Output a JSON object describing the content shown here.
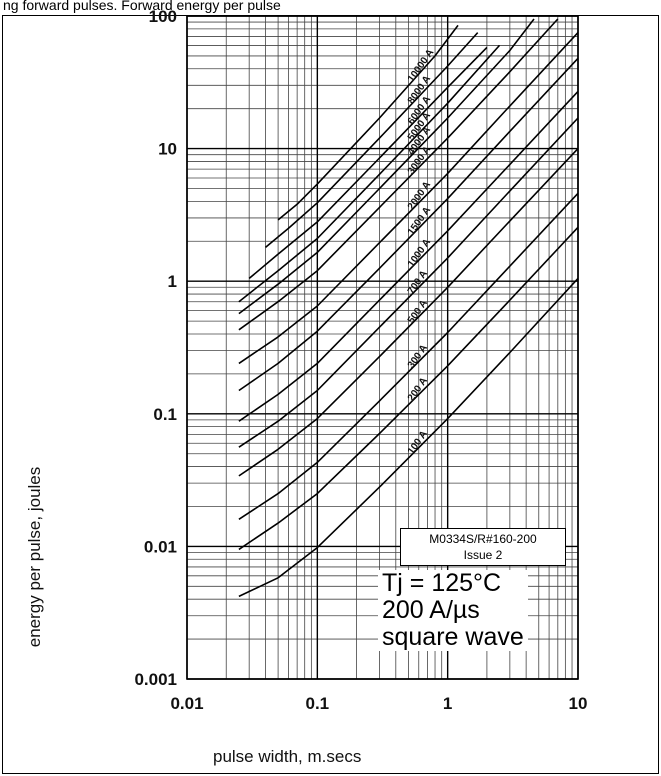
{
  "page": {
    "top_caption": "ng forward pulses. Forward energy per pulse"
  },
  "reference": {
    "code": "M0334S/R#160-200",
    "issue": "Issue 2"
  },
  "conditions": {
    "line1": "Tj = 125°C",
    "line2": "200 A/µs",
    "line3": "square wave"
  },
  "chart_data": {
    "type": "line",
    "title": "",
    "xlabel": "pulse width, m.secs",
    "ylabel": "energy per pulse, joules",
    "xscale": "log",
    "yscale": "log",
    "xlim": [
      0.01,
      10
    ],
    "ylim": [
      0.001,
      100
    ],
    "x_ticks": [
      "0.01",
      "0.1",
      "1",
      "10"
    ],
    "y_ticks": [
      "0.001",
      "0.01",
      "0.1",
      "1",
      "10",
      "100"
    ],
    "grid": true,
    "series": [
      {
        "name": "100 A",
        "x": [
          0.025,
          0.05,
          0.1,
          0.3,
          1,
          3,
          10
        ],
        "y": [
          0.0042,
          0.0058,
          0.0098,
          0.028,
          0.092,
          0.29,
          1.05
        ]
      },
      {
        "name": "200 A",
        "x": [
          0.025,
          0.05,
          0.1,
          0.3,
          1,
          3,
          10
        ],
        "y": [
          0.0095,
          0.015,
          0.025,
          0.071,
          0.23,
          0.72,
          2.55
        ]
      },
      {
        "name": "300 A",
        "x": [
          0.025,
          0.05,
          0.1,
          0.3,
          1,
          3,
          10
        ],
        "y": [
          0.016,
          0.025,
          0.043,
          0.125,
          0.41,
          1.3,
          4.6
        ]
      },
      {
        "name": "500 A",
        "x": [
          0.025,
          0.05,
          0.1,
          0.3,
          1,
          3,
          10
        ],
        "y": [
          0.034,
          0.054,
          0.092,
          0.27,
          0.9,
          2.85,
          10
        ]
      },
      {
        "name": "700 A",
        "x": [
          0.025,
          0.05,
          0.1,
          0.3,
          1,
          3,
          10
        ],
        "y": [
          0.056,
          0.088,
          0.15,
          0.45,
          1.5,
          4.8,
          17
        ]
      },
      {
        "name": "1000 A",
        "x": [
          0.025,
          0.05,
          0.1,
          0.3,
          1,
          3,
          10
        ],
        "y": [
          0.088,
          0.14,
          0.24,
          0.72,
          2.4,
          7.6,
          27
        ]
      },
      {
        "name": "1500 A",
        "x": [
          0.025,
          0.05,
          0.1,
          0.3,
          1,
          3,
          10
        ],
        "y": [
          0.15,
          0.24,
          0.42,
          1.25,
          4.2,
          13.5,
          48
        ]
      },
      {
        "name": "2000 A",
        "x": [
          0.025,
          0.05,
          0.1,
          0.3,
          1,
          3,
          10
        ],
        "y": [
          0.24,
          0.38,
          0.65,
          1.95,
          6.5,
          21,
          75
        ]
      },
      {
        "name": "3000 A",
        "x": [
          0.025,
          0.05,
          0.1,
          0.3,
          1,
          3,
          7
        ],
        "y": [
          0.43,
          0.7,
          1.2,
          3.6,
          12,
          38,
          95
        ]
      },
      {
        "name": "4000 A",
        "x": [
          0.025,
          0.05,
          0.1,
          0.3,
          1,
          3,
          4.6
        ],
        "y": [
          0.57,
          0.95,
          1.65,
          5,
          17,
          55,
          95
        ]
      },
      {
        "name": "5000 A",
        "x": [
          0.025,
          0.05,
          0.1,
          0.3,
          1,
          2.5
        ],
        "y": [
          0.7,
          1.2,
          2.1,
          6.4,
          22,
          60
        ]
      },
      {
        "name": "6000 A",
        "x": [
          0.03,
          0.05,
          0.1,
          0.3,
          1,
          2
        ],
        "y": [
          1.05,
          1.6,
          2.8,
          8.5,
          29,
          58
        ]
      },
      {
        "name": "8000 A",
        "x": [
          0.04,
          0.06,
          0.1,
          0.3,
          1,
          1.7
        ],
        "y": [
          1.8,
          2.5,
          3.9,
          12,
          42,
          75
        ]
      },
      {
        "name": "10000 A",
        "x": [
          0.05,
          0.07,
          0.1,
          0.3,
          0.8,
          1.2
        ],
        "y": [
          2.9,
          3.8,
          5.4,
          17,
          50,
          85
        ]
      }
    ]
  }
}
